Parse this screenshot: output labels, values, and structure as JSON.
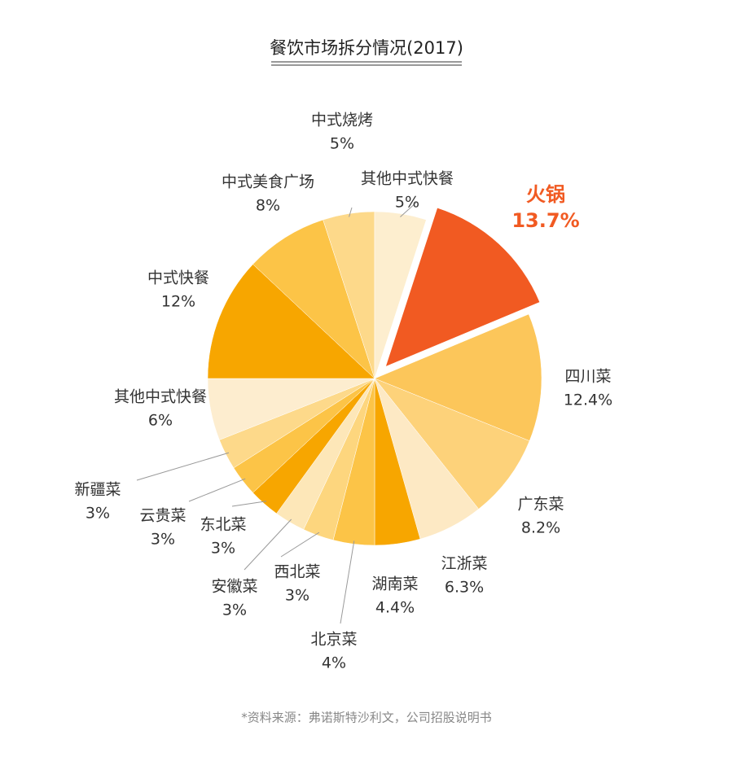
{
  "chart_data": {
    "type": "pie",
    "title": "餐饮市场拆分情况(2017)",
    "categories": [
      "火锅",
      "四川菜",
      "广东菜",
      "江浙菜",
      "湖南菜",
      "北京菜",
      "西北菜",
      "安徽菜",
      "东北菜",
      "云贵菜",
      "新疆菜",
      "其他中式快餐",
      "中式快餐",
      "中式美食广场",
      "中式烧烤",
      "其他中式快餐"
    ],
    "values": [
      13.7,
      12.4,
      8.2,
      6.3,
      4.4,
      4,
      3,
      3,
      3,
      3,
      3,
      6,
      12,
      8,
      5,
      5
    ],
    "value_labels": [
      "13.7%",
      "12.4%",
      "8.2%",
      "6.3%",
      "4.4%",
      "4%",
      "3%",
      "3%",
      "3%",
      "3%",
      "3%",
      "6%",
      "12%",
      "8%",
      "5%",
      "5%"
    ],
    "colors": [
      "#f15a22",
      "#fcc65a",
      "#fdd27a",
      "#fde9c4",
      "#f7a600",
      "#fcc447",
      "#fdd67e",
      "#fde7b8",
      "#f7a600",
      "#fcc447",
      "#fdd98a",
      "#fdedcf",
      "#f7a600",
      "#fcc447",
      "#fdd98a",
      "#fdeecf"
    ],
    "source": "*资料来源：弗诺斯特沙利文，公司招股说明书"
  }
}
